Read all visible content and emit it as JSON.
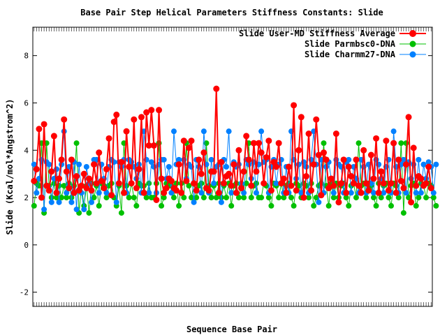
{
  "chart_data": {
    "type": "line",
    "title": "Base Pair Step Helical Parameters Stiffness Constants: Slide",
    "xlabel": "Sequence Base Pair",
    "ylabel": "Slide (Kcal/mol*Angstrom^2)",
    "ylim": [
      -2.6,
      9.2
    ],
    "yticks": [
      -2,
      0,
      2,
      4,
      6,
      8
    ],
    "x_count": 160,
    "grid": false,
    "legend_position": "top-right",
    "series": [
      {
        "name": "Slide User-MD Stiffness Average",
        "color": "#ff0000",
        "values": [
          2.7,
          3.2,
          4.9,
          2.0,
          5.1,
          2.5,
          2.3,
          3.1,
          4.6,
          2.2,
          2.8,
          3.6,
          5.3,
          3.1,
          2.4,
          3.6,
          2.2,
          2.9,
          2.3,
          2.5,
          3.0,
          2.4,
          2.8,
          2.3,
          3.4,
          2.6,
          3.9,
          2.7,
          2.4,
          3.2,
          4.5,
          2.1,
          5.2,
          5.5,
          2.6,
          3.5,
          2.2,
          4.8,
          3.3,
          2.6,
          5.3,
          2.4,
          3.2,
          5.4,
          2.2,
          5.6,
          4.2,
          5.7,
          4.2,
          1.9,
          5.7,
          2.8,
          2.2,
          2.4,
          2.8,
          2.7,
          2.4,
          2.3,
          3.4,
          2.2,
          4.4,
          2.7,
          4.1,
          4.4,
          2.6,
          2.3,
          3.6,
          3.0,
          3.9,
          2.4,
          2.3,
          3.1,
          3.1,
          6.6,
          2.2,
          3.5,
          2.6,
          2.9,
          3.0,
          2.5,
          3.4,
          2.2,
          4.0,
          2.4,
          3.1,
          4.6,
          3.6,
          2.5,
          4.3,
          3.1,
          4.3,
          3.9,
          2.6,
          3.7,
          4.4,
          2.3,
          3.5,
          3.3,
          4.3,
          2.6,
          2.8,
          2.2,
          3.3,
          2.5,
          5.9,
          2.3,
          4.0,
          5.4,
          2.0,
          2.9,
          4.7,
          2.3,
          3.4,
          5.3,
          3.8,
          2.1,
          3.9,
          3.6,
          2.4,
          2.8,
          2.5,
          4.7,
          1.8,
          2.6,
          3.6,
          2.2,
          3.3,
          2.9,
          2.6,
          3.6,
          2.5,
          2.2,
          4.0,
          2.6,
          2.3,
          3.8,
          2.8,
          4.5,
          2.2,
          3.1,
          2.6,
          4.4,
          2.3,
          2.6,
          4.3,
          2.2,
          3.6,
          2.7,
          2.4,
          3.4,
          5.4,
          1.8,
          4.1,
          2.5,
          2.9,
          2.8,
          2.5,
          2.6,
          3.3,
          2.4
        ]
      },
      {
        "name": "Slide Parmbsc0-DNA",
        "color": "#00c000",
        "values": [
          1.65,
          2.6,
          2.5,
          4.3,
          1.35,
          4.3,
          2.5,
          2.0,
          2.6,
          2.0,
          2.5,
          2.0,
          2.5,
          2.0,
          2.6,
          2.0,
          2.5,
          4.3,
          1.35,
          2.5,
          1.65,
          2.5,
          1.35,
          2.6,
          2.0,
          2.5,
          1.65,
          2.6,
          2.5,
          2.0,
          2.5,
          2.6,
          2.0,
          1.65,
          2.5,
          1.35,
          4.3,
          2.5,
          2.0,
          2.6,
          2.0,
          1.65,
          2.6,
          2.5,
          2.5,
          2.0,
          2.6,
          2.0,
          2.0,
          2.6,
          4.3,
          1.65,
          2.0,
          2.6,
          2.5,
          2.5,
          2.0,
          2.6,
          1.65,
          2.6,
          2.0,
          4.3,
          2.5,
          2.0,
          2.6,
          2.0,
          2.5,
          2.6,
          2.0,
          4.3,
          2.5,
          2.0,
          2.5,
          2.0,
          2.6,
          2.0,
          2.5,
          2.0,
          2.6,
          1.65,
          2.5,
          2.6,
          2.0,
          2.5,
          2.0,
          2.6,
          4.3,
          2.0,
          2.5,
          2.6,
          2.0,
          2.0,
          2.6,
          2.5,
          2.0,
          1.65,
          2.6,
          2.5,
          2.0,
          2.6,
          2.0,
          2.5,
          2.6,
          2.0,
          1.65,
          2.6,
          2.5,
          2.0,
          2.6,
          2.5,
          2.0,
          2.6,
          1.65,
          2.0,
          2.5,
          2.6,
          4.3,
          2.5,
          1.65,
          2.6,
          2.0,
          2.6,
          2.0,
          2.5,
          2.6,
          2.0,
          1.65,
          2.5,
          2.6,
          2.0,
          4.3,
          2.5,
          2.6,
          2.0,
          2.6,
          2.5,
          2.0,
          1.65,
          2.6,
          2.0,
          2.5,
          2.6,
          2.0,
          1.65,
          2.6,
          2.5,
          2.0,
          4.3,
          1.35,
          4.3,
          2.0,
          2.5,
          2.6,
          1.65,
          2.0,
          2.6,
          2.5,
          2.0,
          2.6,
          2.5,
          2.0,
          1.65
        ]
      },
      {
        "name": "Slide Charmm27-DNA",
        "color": "#0080ff",
        "values": [
          3.4,
          2.2,
          2.8,
          3.6,
          1.5,
          3.5,
          3.4,
          1.8,
          2.8,
          3.2,
          1.8,
          3.4,
          4.8,
          2.2,
          3.3,
          1.8,
          3.5,
          1.5,
          3.4,
          2.2,
          1.5,
          3.3,
          2.6,
          1.8,
          3.6,
          3.6,
          2.2,
          3.4,
          2.8,
          2.2,
          3.3,
          3.6,
          3.5,
          1.8,
          3.5,
          3.3,
          3.6,
          2.2,
          3.6,
          3.5,
          3.3,
          2.8,
          3.4,
          2.2,
          4.8,
          3.6,
          2.2,
          3.5,
          3.3,
          2.2,
          3.4,
          3.6,
          3.6,
          2.8,
          3.3,
          2.2,
          4.8,
          3.4,
          3.6,
          2.2,
          3.6,
          2.8,
          3.4,
          3.3,
          1.8,
          3.6,
          3.3,
          2.2,
          4.8,
          3.4,
          2.2,
          3.6,
          2.6,
          3.3,
          3.4,
          1.8,
          3.6,
          3.3,
          4.8,
          2.2,
          3.5,
          3.3,
          3.4,
          2.6,
          2.2,
          3.6,
          3.4,
          2.8,
          3.5,
          2.2,
          3.4,
          4.8,
          3.5,
          3.6,
          2.2,
          3.3,
          3.6,
          2.6,
          3.4,
          3.6,
          2.2,
          3.3,
          2.2,
          4.8,
          3.6,
          2.8,
          3.4,
          2.2,
          3.5,
          3.3,
          2.2,
          3.6,
          4.8,
          3.4,
          1.8,
          3.6,
          2.2,
          3.3,
          3.5,
          2.8,
          2.2,
          3.6,
          3.4,
          3.3,
          2.2,
          3.5,
          3.6,
          2.2,
          3.3,
          2.8,
          2.2,
          3.6,
          3.3,
          2.2,
          3.4,
          2.6,
          2.2,
          3.6,
          3.4,
          2.8,
          2.2,
          3.3,
          3.6,
          2.2,
          4.8,
          3.3,
          2.2,
          3.4,
          3.6,
          2.2,
          3.5,
          2.8,
          3.4,
          2.2,
          3.6,
          2.2,
          3.4,
          2.8,
          3.5,
          3.3,
          2.2,
          3.4
        ]
      }
    ]
  }
}
